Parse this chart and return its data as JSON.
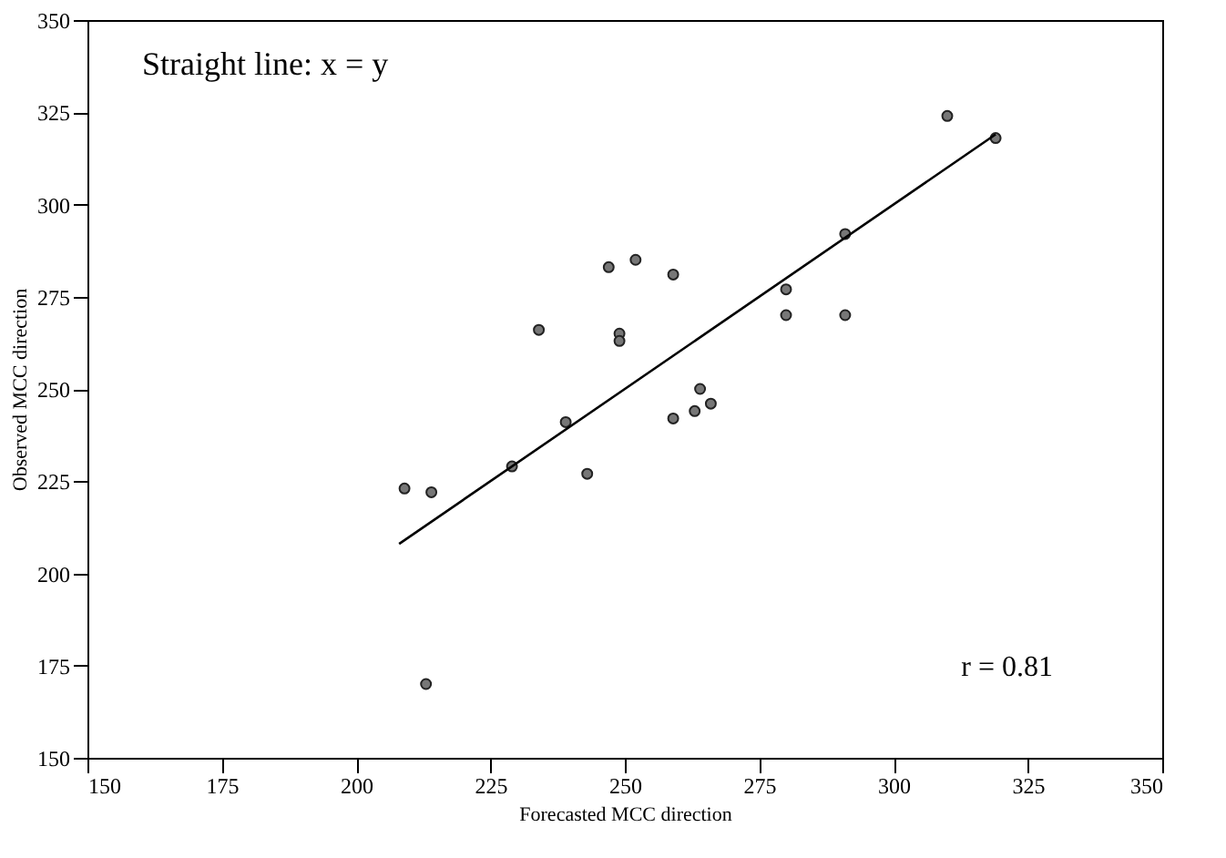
{
  "chart_data": {
    "type": "scatter",
    "xlabel": "Forecasted MCC direction",
    "ylabel": "Observed MCC direction",
    "xlim": [
      150,
      350
    ],
    "ylim": [
      150,
      350
    ],
    "xticks": [
      150,
      175,
      200,
      225,
      250,
      275,
      300,
      325,
      350
    ],
    "yticks": [
      150,
      175,
      200,
      225,
      250,
      275,
      300,
      325,
      350
    ],
    "grid": false,
    "annotations": [
      "Straight line: x = y",
      "r = 0.81"
    ],
    "series": [
      {
        "color": "#777777",
        "marker": "circle",
        "x": [
          209,
          214,
          213,
          229,
          234,
          239,
          243,
          247,
          249,
          249,
          252,
          259,
          259,
          263,
          264,
          266,
          280,
          280,
          291,
          291,
          310,
          319
        ],
        "values": [
          223,
          222,
          170,
          229,
          266,
          241,
          227,
          283,
          265,
          263,
          285,
          242,
          281,
          244,
          250,
          246,
          277,
          270,
          270,
          292,
          324,
          318
        ]
      },
      {
        "type": "line",
        "color": "#000000",
        "marker": "none",
        "x": [
          208,
          319
        ],
        "values": [
          208,
          319
        ]
      }
    ]
  }
}
